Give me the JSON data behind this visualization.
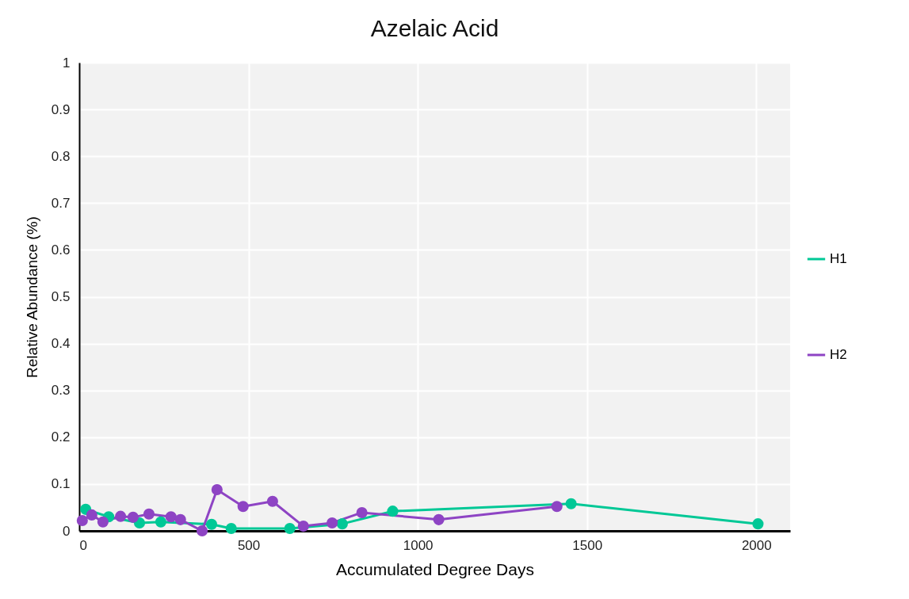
{
  "chart_data": {
    "type": "line",
    "title": "Azelaic Acid",
    "xlabel": "Accumulated Degree Days",
    "ylabel": "Relative Abundance (%)",
    "series": [
      {
        "name": "H1",
        "color": "#00c896",
        "x": [
          19,
          87,
          178,
          241,
          391,
          449,
          622,
          777,
          926,
          1453,
          2005
        ],
        "values": [
          0.046,
          0.03,
          0.017,
          0.019,
          0.014,
          0.005,
          0.005,
          0.015,
          0.042,
          0.058,
          0.015
        ]
      },
      {
        "name": "H2",
        "color": "#8e44c4",
        "x": [
          9,
          37,
          70,
          122,
          159,
          206,
          271,
          299,
          363,
          407,
          484,
          571,
          662,
          747,
          835,
          1062,
          1411
        ],
        "values": [
          0.022,
          0.034,
          0.019,
          0.031,
          0.029,
          0.036,
          0.03,
          0.024,
          0.0,
          0.088,
          0.052,
          0.063,
          0.01,
          0.017,
          0.039,
          0.024,
          0.052
        ]
      }
    ],
    "xlim": [
      0,
      2100
    ],
    "xticks": [
      0,
      500,
      1000,
      1500,
      2000
    ],
    "ylim": [
      0,
      1
    ],
    "yticks": [
      0,
      0.1,
      0.2,
      0.3,
      0.4,
      0.5,
      0.6,
      0.7,
      0.8,
      0.9,
      1
    ],
    "grid": true,
    "legend": "right",
    "marker": "circle",
    "line_style": "solid"
  }
}
